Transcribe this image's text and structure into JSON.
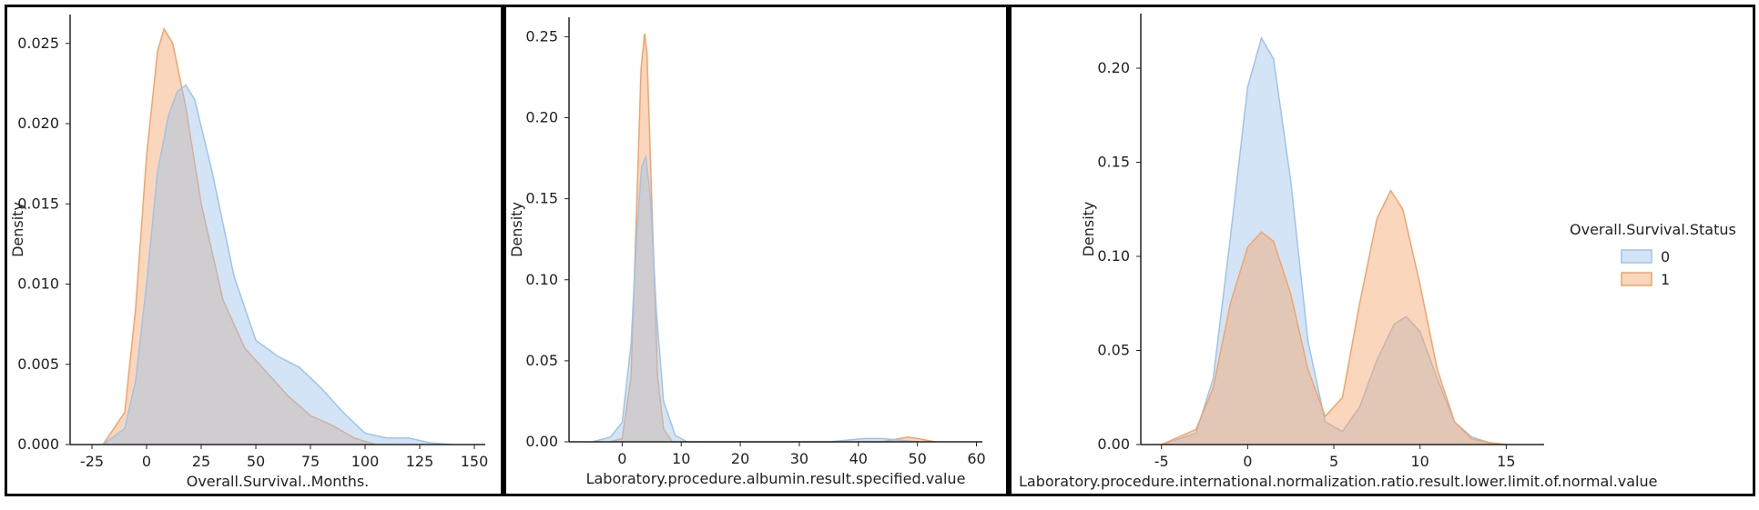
{
  "chart_data": [
    {
      "type": "area",
      "xlabel": "Overall.Survival..Months.",
      "ylabel": "Density",
      "xlim": [
        -35,
        155
      ],
      "ylim": [
        0,
        0.0268
      ],
      "xticks": [
        -25,
        0,
        25,
        50,
        75,
        100,
        125,
        150
      ],
      "yticks": [
        0.0,
        0.005,
        0.01,
        0.015,
        0.02,
        0.025
      ],
      "ytick_labels": [
        "0.000",
        "0.005",
        "0.010",
        "0.015",
        "0.020",
        "0.025"
      ],
      "grid": false,
      "series": [
        {
          "name": "1",
          "color": "#f4a46a",
          "x": [
            -20,
            -10,
            -5,
            0,
            5,
            8,
            12,
            18,
            25,
            35,
            45,
            55,
            65,
            75,
            85,
            95,
            105
          ],
          "y": [
            0.0,
            0.002,
            0.0085,
            0.018,
            0.0245,
            0.0259,
            0.025,
            0.021,
            0.015,
            0.009,
            0.006,
            0.0045,
            0.003,
            0.0018,
            0.0012,
            0.0004,
            0.0
          ]
        },
        {
          "name": "0",
          "color": "#9ec4ea",
          "x": [
            -20,
            -10,
            -5,
            0,
            5,
            10,
            14,
            18,
            22,
            30,
            40,
            50,
            60,
            70,
            80,
            90,
            100,
            110,
            120,
            130,
            140
          ],
          "y": [
            0.0,
            0.001,
            0.004,
            0.01,
            0.017,
            0.0205,
            0.022,
            0.0224,
            0.0215,
            0.017,
            0.0105,
            0.0065,
            0.0055,
            0.0048,
            0.0035,
            0.002,
            0.0007,
            0.0004,
            0.0004,
            0.0001,
            0.0
          ]
        }
      ]
    },
    {
      "type": "area",
      "xlabel": "Laboratory.procedure.albumin.result.specified.value",
      "ylabel": "Density",
      "xlim": [
        -9,
        61
      ],
      "ylim": [
        0,
        0.262
      ],
      "xticks": [
        0,
        10,
        20,
        30,
        40,
        50,
        60
      ],
      "yticks": [
        0.0,
        0.05,
        0.1,
        0.15,
        0.2,
        0.25
      ],
      "ytick_labels": [
        "0.00",
        "0.05",
        "0.10",
        "0.15",
        "0.20",
        "0.25"
      ],
      "grid": false,
      "series": [
        {
          "name": "1",
          "color": "#f4a46a",
          "x": [
            -2,
            0,
            1.5,
            2.5,
            3.2,
            3.8,
            4.2,
            5.0,
            6.0,
            7.0,
            8.5,
            44,
            47,
            48.5,
            50,
            53
          ],
          "y": [
            0.0,
            0.002,
            0.04,
            0.15,
            0.23,
            0.252,
            0.24,
            0.15,
            0.04,
            0.008,
            0.0,
            0.0,
            0.002,
            0.003,
            0.002,
            0.0
          ]
        },
        {
          "name": "0",
          "color": "#9ec4ea",
          "x": [
            -5,
            -2,
            0,
            1.5,
            2.5,
            3.3,
            4.0,
            4.8,
            5.8,
            7.0,
            9.0,
            11.0,
            35,
            38,
            41,
            44,
            47,
            50
          ],
          "y": [
            0.0,
            0.003,
            0.012,
            0.06,
            0.13,
            0.17,
            0.176,
            0.15,
            0.08,
            0.025,
            0.004,
            0.0,
            0.0,
            0.001,
            0.002,
            0.002,
            0.001,
            0.0
          ]
        }
      ]
    },
    {
      "type": "area",
      "xlabel": "Laboratory.procedure.international.normalization.ratio.result.lower.limit.of.normal.value",
      "ylabel": "Density",
      "xlim": [
        -6.2,
        17.2
      ],
      "ylim": [
        0,
        0.229
      ],
      "xticks": [
        -5,
        0,
        5,
        10,
        15
      ],
      "yticks": [
        0.0,
        0.05,
        0.1,
        0.15,
        0.2
      ],
      "ytick_labels": [
        "0.00",
        "0.05",
        "0.10",
        "0.15",
        "0.20"
      ],
      "grid": false,
      "legend": {
        "title": "Overall.Survival.Status",
        "placement": "right"
      },
      "series": [
        {
          "name": "0",
          "color": "#9ec4ea",
          "x": [
            -5,
            -3,
            -2,
            -1,
            0,
            0.8,
            1.5,
            2.5,
            3.5,
            4.5,
            5.5,
            6.5,
            7.5,
            8.5,
            9.2,
            10,
            11,
            12,
            13,
            14,
            15
          ],
          "y": [
            0.0,
            0.006,
            0.035,
            0.11,
            0.19,
            0.216,
            0.205,
            0.14,
            0.055,
            0.012,
            0.007,
            0.02,
            0.045,
            0.064,
            0.068,
            0.06,
            0.035,
            0.012,
            0.004,
            0.001,
            0.0
          ]
        },
        {
          "name": "1",
          "color": "#f4a46a",
          "x": [
            -5,
            -3,
            -2,
            -1,
            0,
            0.8,
            1.5,
            2.5,
            3.5,
            4.5,
            5.5,
            6.5,
            7.5,
            8.3,
            9,
            10,
            11,
            12,
            13,
            14,
            15
          ],
          "y": [
            0.0,
            0.008,
            0.03,
            0.075,
            0.105,
            0.113,
            0.108,
            0.08,
            0.04,
            0.015,
            0.025,
            0.075,
            0.12,
            0.135,
            0.125,
            0.085,
            0.04,
            0.012,
            0.003,
            0.001,
            0.0
          ]
        }
      ]
    }
  ],
  "legend_items": [
    {
      "label": "0",
      "color": "#9ec4ea"
    },
    {
      "label": "1",
      "color": "#f4a46a"
    }
  ]
}
